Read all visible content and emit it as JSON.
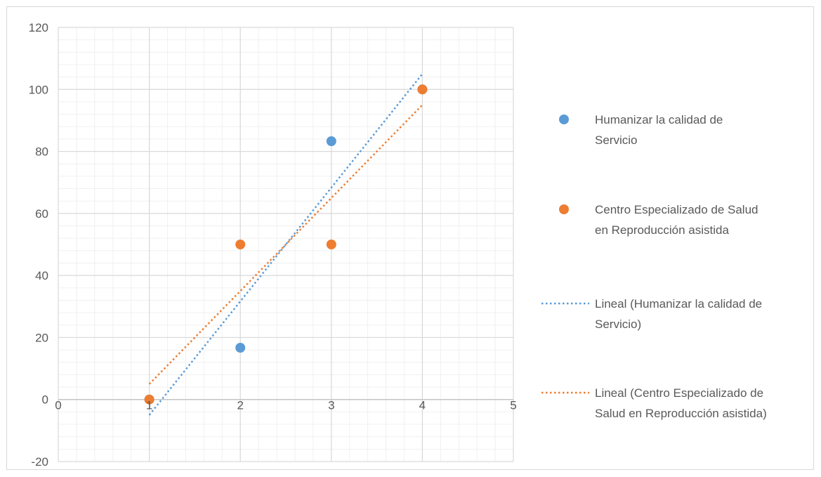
{
  "chart_data": {
    "type": "scatter",
    "title": "",
    "xlabel": "",
    "ylabel": "",
    "xlim": [
      0,
      5
    ],
    "ylim": [
      -20,
      120
    ],
    "x_ticks": [
      "0",
      "1",
      "2",
      "3",
      "4",
      "5"
    ],
    "y_ticks": [
      "-20",
      "0",
      "20",
      "40",
      "60",
      "80",
      "100",
      "120"
    ],
    "x_tick_values": [
      0,
      1,
      2,
      3,
      4,
      5
    ],
    "y_tick_values": [
      -20,
      0,
      20,
      40,
      60,
      80,
      100,
      120
    ],
    "grid": true,
    "minor_grid": true,
    "legend_position": "right",
    "series": [
      {
        "name": "Humanizar la calidad de Servicio",
        "legend_lines": [
          "Humanizar la calidad de",
          "Servicio"
        ],
        "color": "#5b9bd5",
        "points": [
          {
            "x": 1,
            "y": 0
          },
          {
            "x": 2,
            "y": 16.7
          },
          {
            "x": 3,
            "y": 83.3
          },
          {
            "x": 4,
            "y": 100
          }
        ]
      },
      {
        "name": "Centro Especializado de Salud en Reproducción asistida",
        "legend_lines": [
          "Centro Especializado de Salud",
          "en Reproducción asistida"
        ],
        "color": "#ed7d31",
        "points": [
          {
            "x": 1,
            "y": 0
          },
          {
            "x": 2,
            "y": 50
          },
          {
            "x": 3,
            "y": 50
          },
          {
            "x": 4,
            "y": 100
          }
        ]
      }
    ],
    "trendlines": [
      {
        "name": "Lineal (Humanizar la calidad de Servicio)",
        "legend_lines": [
          "Lineal (Humanizar la calidad de",
          "Servicio)"
        ],
        "color": "#5b9bd5",
        "style": "dotted",
        "x_range": [
          1,
          4
        ],
        "slope": 36.67,
        "intercept": -41.67
      },
      {
        "name": "Lineal (Centro Especializado de Salud en Reproducción asistida)",
        "legend_lines": [
          "Lineal (Centro Especializado de",
          "Salud en Reproducción asistida)"
        ],
        "color": "#ed7d31",
        "style": "dotted",
        "x_range": [
          1,
          4
        ],
        "slope": 30,
        "intercept": -25
      }
    ]
  }
}
